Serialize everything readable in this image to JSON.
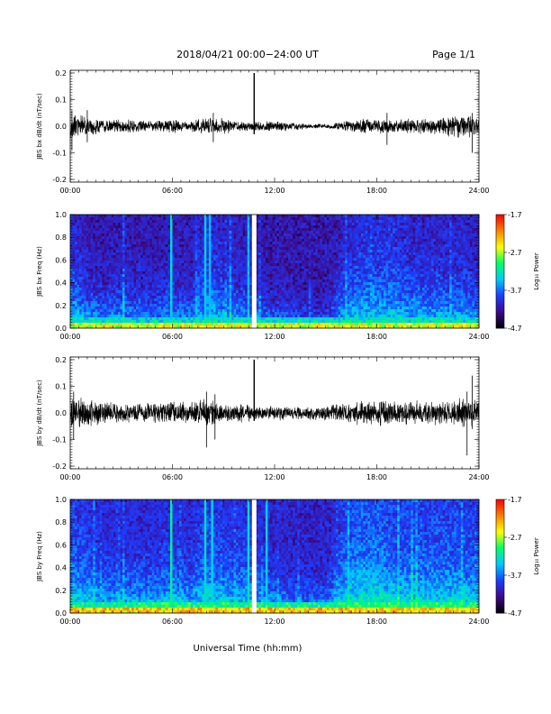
{
  "header": {
    "title": "2018/04/21   00:00−24:00 UT",
    "page": "Page 1/1"
  },
  "footer": {
    "xlabel": "Universal Time (hh:mm)"
  },
  "time_ticks": [
    "00:00",
    "06:00",
    "12:00",
    "18:00",
    "24:00"
  ],
  "colorbar": {
    "label": "Log₁₀ Power",
    "ticks": [
      "-1.7",
      "-2.7",
      "-3.7",
      "-4.7"
    ],
    "range": [
      -4.7,
      -1.7
    ],
    "colors": [
      "#000000",
      "#3d0a8c",
      "#1d3dff",
      "#00c8ff",
      "#00ff66",
      "#ffff00",
      "#ff8000",
      "#ff0000"
    ]
  },
  "chart_data": [
    {
      "type": "line",
      "id": "jbs-bx-db-dt",
      "ylabel": "JBS bx dB/dt (nT/sec)",
      "x_range_hours": [
        0,
        24
      ],
      "ylim": [
        -0.21,
        0.21
      ],
      "yticks": [
        "0.2",
        "0.1",
        "0.0",
        "-0.1",
        "-0.2"
      ],
      "baseline": 0.0,
      "envelope": {
        "hours": [
          0,
          1,
          2,
          3,
          4,
          5,
          6,
          7,
          8,
          9,
          10,
          11,
          12,
          13,
          14,
          15,
          16,
          17,
          18,
          19,
          20,
          21,
          22,
          23,
          24
        ],
        "amplitude": [
          0.06,
          0.04,
          0.03,
          0.03,
          0.03,
          0.02,
          0.03,
          0.02,
          0.04,
          0.03,
          0.02,
          0.02,
          0.02,
          0.02,
          0.01,
          0.01,
          0.02,
          0.03,
          0.03,
          0.03,
          0.03,
          0.03,
          0.04,
          0.05,
          0.04
        ]
      },
      "spikes": [
        {
          "hour": 0.1,
          "max": 0.06,
          "min": -0.09
        },
        {
          "hour": 1.0,
          "max": 0.06,
          "min": -0.06
        },
        {
          "hour": 8.4,
          "max": 0.05,
          "min": -0.06
        },
        {
          "hour": 10.8,
          "max": 0.2,
          "min": -0.03
        },
        {
          "hour": 18.6,
          "max": 0.05,
          "min": -0.07
        },
        {
          "hour": 23.6,
          "max": 0.05,
          "min": -0.1
        }
      ]
    },
    {
      "type": "heatmap",
      "id": "jbs-bx-freq",
      "ylabel": "JBS bx Freq (Hz)",
      "x_range_hours": [
        0,
        24
      ],
      "ylim": [
        0.0,
        1.0
      ],
      "yticks": [
        "1.0",
        "0.8",
        "0.6",
        "0.4",
        "0.2",
        "0.0"
      ],
      "z_unit": "Log10 Power",
      "zlim": [
        -4.7,
        -1.7
      ],
      "background_level": -4.2,
      "low_freq_level": -2.6,
      "activity_hours": [
        0,
        1,
        2,
        3,
        4,
        5,
        6,
        7,
        8,
        9,
        10,
        11,
        12,
        13,
        14,
        15,
        16,
        17,
        18,
        19,
        20,
        21,
        22,
        23,
        24
      ],
      "activity_level": [
        -3.6,
        -3.8,
        -3.9,
        -3.8,
        -3.9,
        -3.9,
        -3.8,
        -3.9,
        -3.6,
        -3.7,
        -3.8,
        -3.9,
        -4.0,
        -4.0,
        -4.1,
        -4.1,
        -3.7,
        -3.6,
        -3.6,
        -3.6,
        -3.7,
        -3.7,
        -3.7,
        -3.7,
        -3.8
      ],
      "streaks": [
        {
          "hour": 5.9,
          "level": -3.2
        },
        {
          "hour": 7.9,
          "level": -3.3
        },
        {
          "hour": 8.2,
          "level": -3.4
        },
        {
          "hour": 10.5,
          "level": -3.3
        },
        {
          "hour": 10.8,
          "level": -1.7
        }
      ]
    },
    {
      "type": "line",
      "id": "jbs-by-db-dt",
      "ylabel": "JBS by dB/dt (nT/sec)",
      "x_range_hours": [
        0,
        24
      ],
      "ylim": [
        -0.21,
        0.21
      ],
      "yticks": [
        "0.2",
        "0.1",
        "0.0",
        "-0.1",
        "-0.2"
      ],
      "baseline": 0.0,
      "envelope": {
        "hours": [
          0,
          1,
          2,
          3,
          4,
          5,
          6,
          7,
          8,
          9,
          10,
          11,
          12,
          13,
          14,
          15,
          16,
          17,
          18,
          19,
          20,
          21,
          22,
          23,
          24
        ],
        "amplitude": [
          0.07,
          0.06,
          0.05,
          0.04,
          0.04,
          0.04,
          0.05,
          0.04,
          0.06,
          0.04,
          0.04,
          0.03,
          0.03,
          0.03,
          0.03,
          0.03,
          0.04,
          0.05,
          0.05,
          0.05,
          0.05,
          0.05,
          0.05,
          0.06,
          0.05
        ]
      },
      "spikes": [
        {
          "hour": 0.2,
          "max": 0.08,
          "min": -0.1
        },
        {
          "hour": 8.0,
          "max": 0.08,
          "min": -0.13
        },
        {
          "hour": 8.5,
          "max": 0.07,
          "min": -0.1
        },
        {
          "hour": 10.8,
          "max": 0.2,
          "min": -0.03
        },
        {
          "hour": 23.3,
          "max": 0.08,
          "min": -0.16
        },
        {
          "hour": 23.6,
          "max": 0.14,
          "min": -0.06
        }
      ]
    },
    {
      "type": "heatmap",
      "id": "jbs-by-freq",
      "ylabel": "JBS by Freq (Hz)",
      "x_range_hours": [
        0,
        24
      ],
      "ylim": [
        0.0,
        1.0
      ],
      "yticks": [
        "1.0",
        "0.8",
        "0.6",
        "0.4",
        "0.2",
        "0.0"
      ],
      "z_unit": "Log10 Power",
      "zlim": [
        -4.7,
        -1.7
      ],
      "background_level": -4.1,
      "low_freq_level": -2.4,
      "activity_hours": [
        0,
        1,
        2,
        3,
        4,
        5,
        6,
        7,
        8,
        9,
        10,
        11,
        12,
        13,
        14,
        15,
        16,
        17,
        18,
        19,
        20,
        21,
        22,
        23,
        24
      ],
      "activity_level": [
        -3.5,
        -3.6,
        -3.7,
        -3.7,
        -3.7,
        -3.7,
        -3.6,
        -3.7,
        -3.5,
        -3.6,
        -3.6,
        -3.7,
        -3.8,
        -3.9,
        -3.9,
        -3.9,
        -3.5,
        -3.4,
        -3.4,
        -3.5,
        -3.5,
        -3.5,
        -3.5,
        -3.5,
        -3.6
      ],
      "streaks": [
        {
          "hour": 5.9,
          "level": -3.0
        },
        {
          "hour": 7.9,
          "level": -3.2
        },
        {
          "hour": 8.3,
          "level": -3.3
        },
        {
          "hour": 10.5,
          "level": -3.2
        },
        {
          "hour": 10.8,
          "level": -1.7
        },
        {
          "hour": 11.5,
          "level": -3.3
        }
      ]
    }
  ]
}
